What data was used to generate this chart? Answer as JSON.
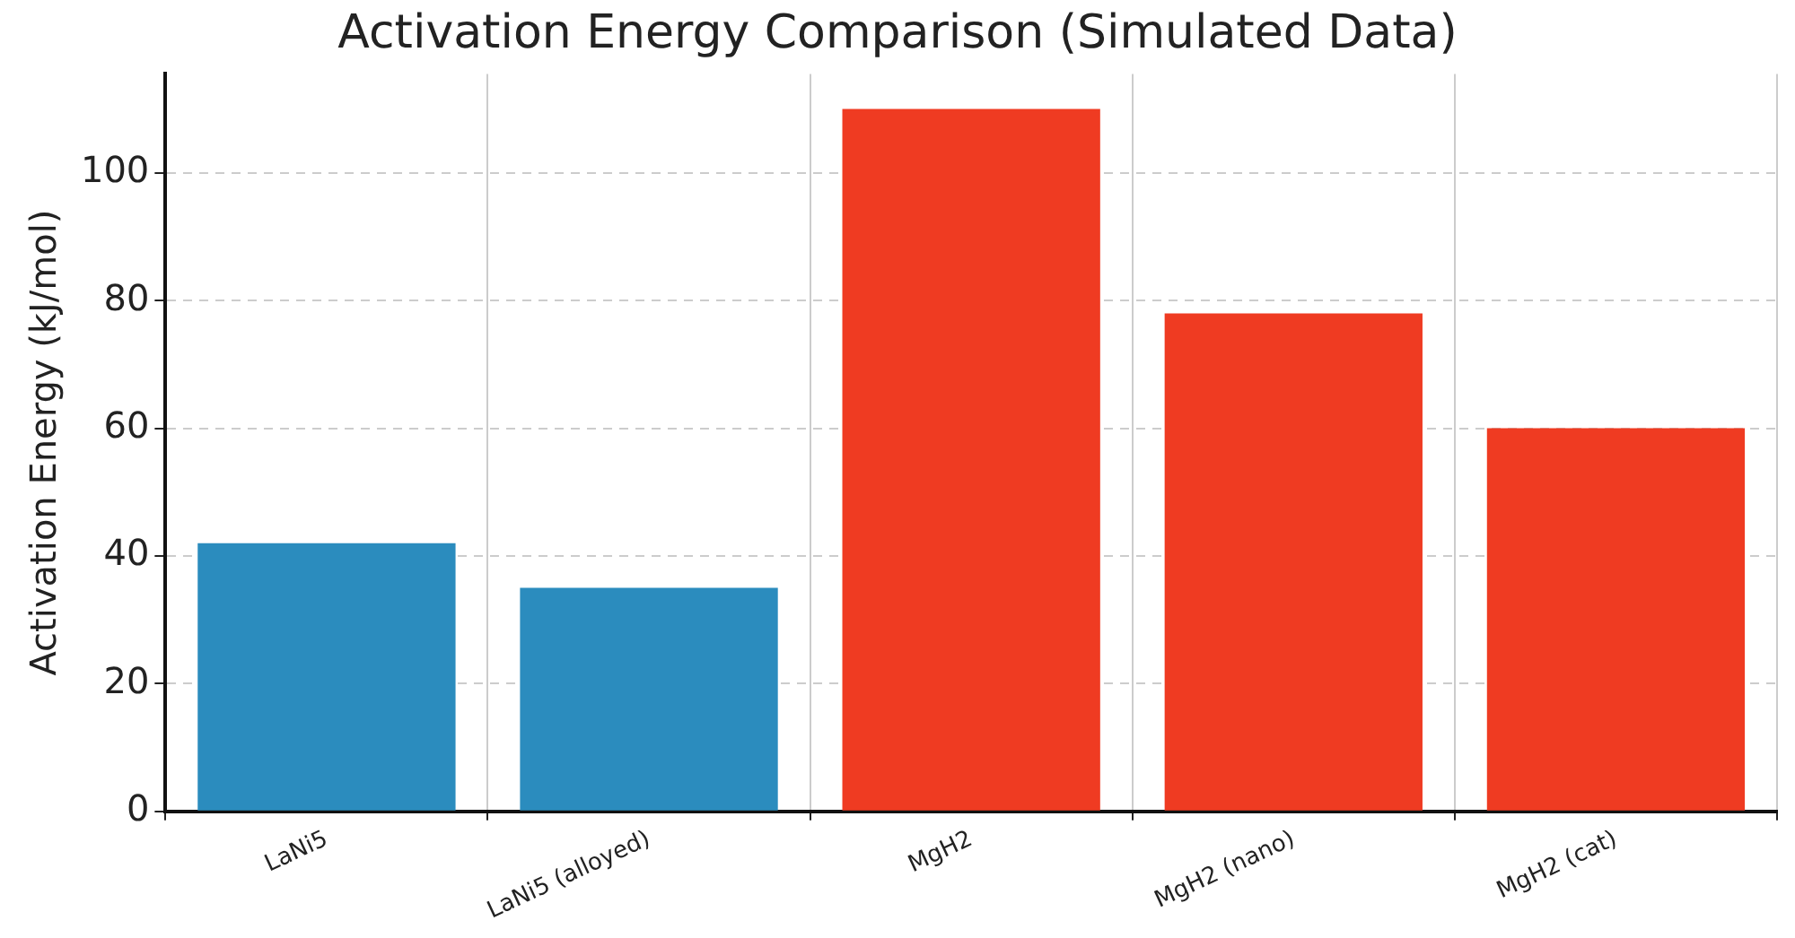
{
  "chart_data": {
    "type": "bar",
    "title": "Activation Energy Comparison (Simulated Data)",
    "ylabel": "Activation Energy (kJ/mol)",
    "categories": [
      "LaNi5",
      "LaNi5 (alloyed)",
      "MgH2",
      "MgH2 (nano)",
      "MgH2 (cat)"
    ],
    "values": [
      42,
      35,
      110,
      78,
      60
    ],
    "colors": [
      "#2b8cbe",
      "#2b8cbe",
      "#ef3b22",
      "#ef3b22",
      "#ef3b22"
    ],
    "ylim": [
      0,
      115.5
    ],
    "yticks": [
      0,
      20,
      40,
      60,
      80,
      100
    ],
    "grid": true,
    "legend": false
  }
}
